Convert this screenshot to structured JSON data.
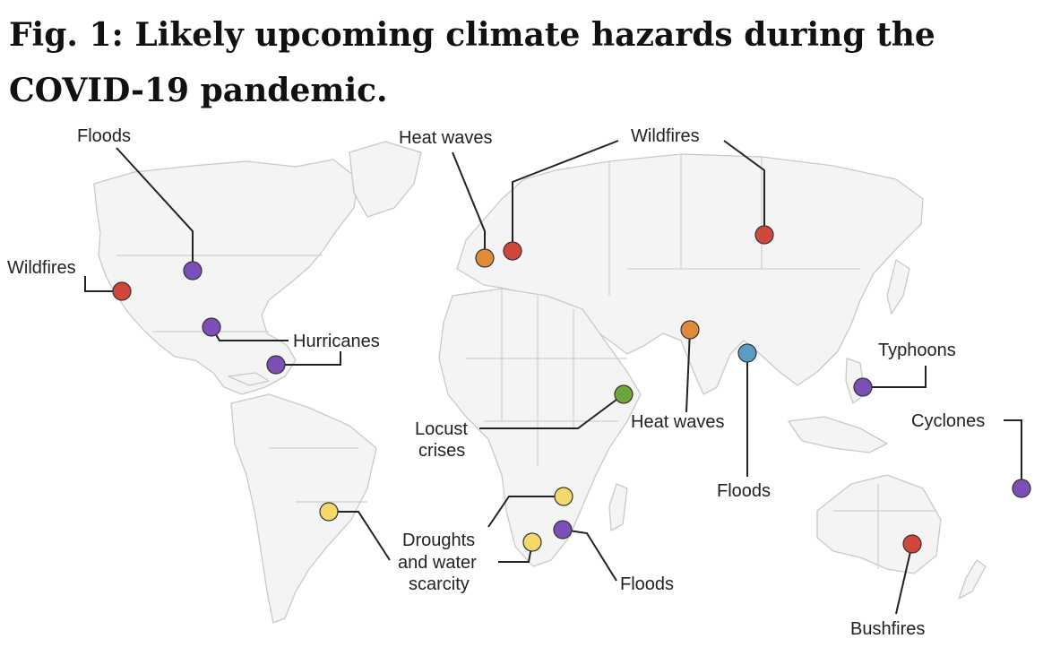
{
  "title": "Fig. 1: Likely upcoming climate hazards during the COVID-19 pandemic.",
  "colors": {
    "wildfire_red": "#d1473c",
    "heat_orange": "#e08a3c",
    "flood_purple": "#7b4fb5",
    "flood_blue": "#5d9bc7",
    "locust_green": "#6aa63a",
    "drought_yellow": "#f5d86a"
  },
  "labels": {
    "floods_na": "Floods",
    "wildfires_na": "Wildfires",
    "hurricanes": "Hurricanes",
    "heat_waves_eu": "Heat waves",
    "wildfires_ru": "Wildfires",
    "heat_waves_in": "Heat waves",
    "floods_asia": "Floods",
    "typhoons": "Typhoons",
    "cyclones": "Cyclones",
    "locust_line1": "Locust",
    "locust_line2": "crises",
    "droughts_line1": "Droughts",
    "droughts_line2": "and water",
    "droughts_line3": "scarcity",
    "floods_af": "Floods",
    "bushfires": "Bushfires"
  }
}
